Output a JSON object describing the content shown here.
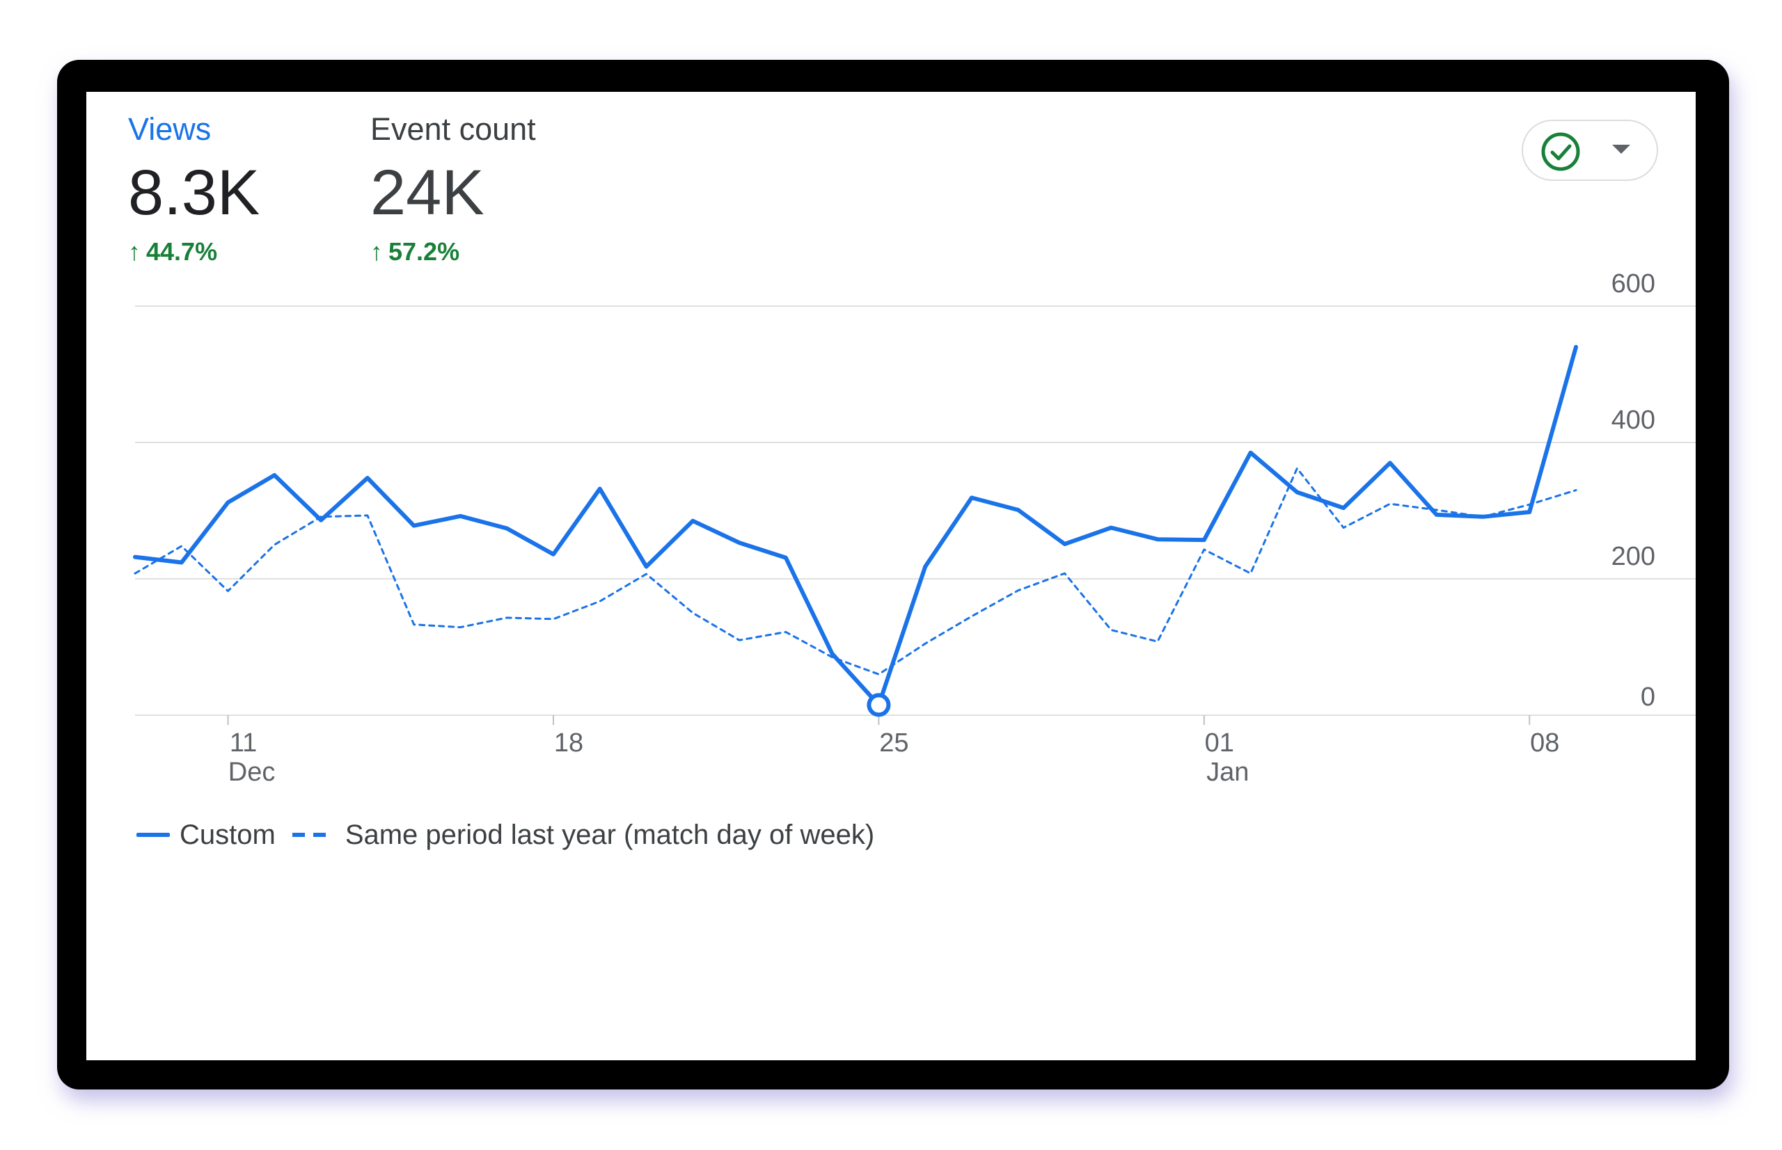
{
  "metrics": [
    {
      "label": "Views",
      "value": "8.3K",
      "change": "44.7%"
    },
    {
      "label": "Event count",
      "value": "24K",
      "change": "57.2%"
    }
  ],
  "compare_control": {
    "icon": "check-circle-icon",
    "dropdown_icon": "caret-down-icon"
  },
  "colors": {
    "series": "#1a73e8",
    "positive": "#188038",
    "grid": "#e0e0e0",
    "axis_text": "#5f6368"
  },
  "chart_data": {
    "type": "line",
    "x": [
      "2023-12-09",
      "2023-12-10",
      "2023-12-11",
      "2023-12-12",
      "2023-12-13",
      "2023-12-14",
      "2023-12-15",
      "2023-12-16",
      "2023-12-17",
      "2023-12-18",
      "2023-12-19",
      "2023-12-20",
      "2023-12-21",
      "2023-12-22",
      "2023-12-23",
      "2023-12-24",
      "2023-12-25",
      "2023-12-26",
      "2023-12-27",
      "2023-12-28",
      "2023-12-29",
      "2023-12-30",
      "2023-12-31",
      "2024-01-01",
      "2024-01-02",
      "2024-01-03",
      "2024-01-04",
      "2024-01-05",
      "2024-01-06",
      "2024-01-07",
      "2024-01-08",
      "2024-01-09"
    ],
    "series": [
      {
        "name": "Custom",
        "style": "solid",
        "values": [
          232,
          224,
          312,
          352,
          286,
          348,
          278,
          292,
          274,
          236,
          332,
          218,
          285,
          253,
          231,
          90,
          15,
          218,
          319,
          301,
          251,
          275,
          258,
          257,
          385,
          327,
          304,
          370,
          294,
          291,
          298,
          540
        ]
      },
      {
        "name": "Same period last year (match day of week)",
        "style": "dashed",
        "values": [
          208,
          248,
          182,
          250,
          291,
          293,
          133,
          129,
          143,
          141,
          167,
          207,
          150,
          110,
          122,
          85,
          60,
          105,
          145,
          183,
          208,
          125,
          108,
          243,
          208,
          362,
          275,
          310,
          301,
          291,
          309,
          330
        ]
      }
    ],
    "highlight": {
      "series": 0,
      "index": 16
    },
    "x_ticks": [
      {
        "index": 2,
        "label": "11",
        "sublabel": "Dec"
      },
      {
        "index": 9,
        "label": "18",
        "sublabel": ""
      },
      {
        "index": 16,
        "label": "25",
        "sublabel": ""
      },
      {
        "index": 23,
        "label": "01",
        "sublabel": "Jan"
      },
      {
        "index": 30,
        "label": "08",
        "sublabel": ""
      }
    ],
    "y_ticks": [
      0,
      200,
      400,
      600
    ],
    "ylim": [
      0,
      600
    ],
    "grid": true,
    "legend_position": "bottom-left",
    "title": "",
    "xlabel": "",
    "ylabel": ""
  }
}
